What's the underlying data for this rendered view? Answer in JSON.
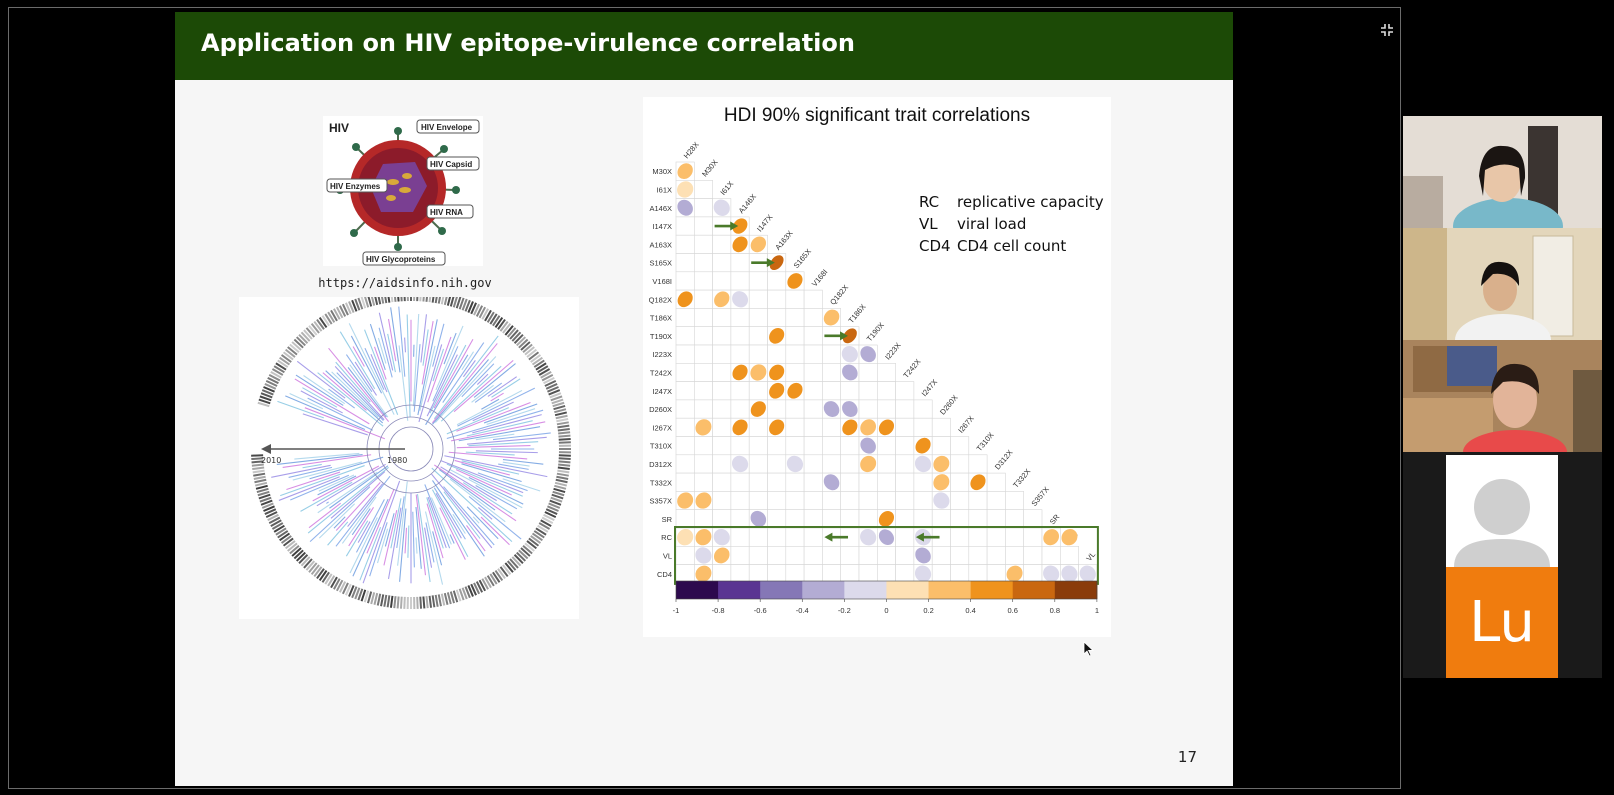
{
  "slide": {
    "title": "Application on HIV epitope-virulence correlation",
    "page_number": "17",
    "virion": {
      "heading": "HIV",
      "labels": [
        "HIV Envelope",
        "HIV Capsid",
        "HIV Enzymes",
        "HIV RNA",
        "HIV Glycoproteins"
      ],
      "caption": "https://aidsinfo.nih.gov"
    },
    "tree": {
      "axis_start": "2010",
      "axis_end": "1980"
    },
    "legend": [
      {
        "abbr": "RC",
        "text": "replicative capacity"
      },
      {
        "abbr": "VL",
        "text": "viral load"
      },
      {
        "abbr": "CD4",
        "text": "CD4 cell count"
      }
    ]
  },
  "participants": {
    "lu_initials": "Lu"
  },
  "colors": {
    "header_green": "#1c4a06",
    "highlight_green": "#4a7a2a",
    "lu_orange": "#f07c0e"
  },
  "chart_data": {
    "type": "heatmap",
    "title": "HDI 90% significant trait correlations",
    "traits": [
      "H28X",
      "M30X",
      "I61X",
      "A146X",
      "I147X",
      "A163X",
      "S165X",
      "V168I",
      "Q182X",
      "T186X",
      "T190X",
      "I223X",
      "T242X",
      "I247X",
      "D260X",
      "I267X",
      "T310X",
      "D312X",
      "T332X",
      "S357X",
      "SR",
      "RC",
      "VL",
      "CD4"
    ],
    "row_labels": [
      "M30X",
      "I61X",
      "A146X",
      "I147X",
      "A163X",
      "S165X",
      "V168I",
      "Q182X",
      "T186X",
      "T190X",
      "I223X",
      "T242X",
      "I247X",
      "D260X",
      "I267X",
      "T310X",
      "D312X",
      "T332X",
      "S357X",
      "SR",
      "RC",
      "VL",
      "CD4"
    ],
    "col_labels": [
      "H28X",
      "M30X",
      "I61X",
      "A146X",
      "I147X",
      "A163X",
      "S165X",
      "V168I",
      "Q182X",
      "T186X",
      "T190X",
      "I223X",
      "T242X",
      "I247X",
      "D260X",
      "I267X",
      "T310X",
      "D312X",
      "T332X",
      "S357X",
      "SR",
      "RC",
      "VL"
    ],
    "cells": [
      {
        "row": "M30X",
        "col": "H28X",
        "value": 0.35
      },
      {
        "row": "I61X",
        "col": "H28X",
        "value": 0.15
      },
      {
        "row": "A146X",
        "col": "H28X",
        "value": -0.3
      },
      {
        "row": "A146X",
        "col": "I61X",
        "value": -0.15
      },
      {
        "row": "I147X",
        "col": "A146X",
        "value": 0.5
      },
      {
        "row": "A163X",
        "col": "A146X",
        "value": 0.4
      },
      {
        "row": "A163X",
        "col": "I147X",
        "value": 0.35
      },
      {
        "row": "S165X",
        "col": "A163X",
        "value": 0.75
      },
      {
        "row": "V168I",
        "col": "S165X",
        "value": 0.4
      },
      {
        "row": "Q182X",
        "col": "H28X",
        "value": 0.4
      },
      {
        "row": "Q182X",
        "col": "I61X",
        "value": 0.35
      },
      {
        "row": "Q182X",
        "col": "A146X",
        "value": -0.2
      },
      {
        "row": "T186X",
        "col": "Q182X",
        "value": 0.3
      },
      {
        "row": "T190X",
        "col": "A163X",
        "value": 0.4
      },
      {
        "row": "T190X",
        "col": "T186X",
        "value": 0.7
      },
      {
        "row": "I223X",
        "col": "T186X",
        "value": -0.15
      },
      {
        "row": "I223X",
        "col": "T190X",
        "value": -0.3
      },
      {
        "row": "T242X",
        "col": "A146X",
        "value": 0.4
      },
      {
        "row": "T242X",
        "col": "I147X",
        "value": 0.2
      },
      {
        "row": "T242X",
        "col": "A163X",
        "value": 0.4
      },
      {
        "row": "T242X",
        "col": "T186X",
        "value": -0.3
      },
      {
        "row": "I247X",
        "col": "A163X",
        "value": 0.4
      },
      {
        "row": "I247X",
        "col": "S165X",
        "value": 0.4
      },
      {
        "row": "D260X",
        "col": "I147X",
        "value": 0.4
      },
      {
        "row": "D260X",
        "col": "Q182X",
        "value": -0.3
      },
      {
        "row": "D260X",
        "col": "T186X",
        "value": -0.3
      },
      {
        "row": "I267X",
        "col": "M30X",
        "value": 0.2
      },
      {
        "row": "I267X",
        "col": "A146X",
        "value": 0.4
      },
      {
        "row": "I267X",
        "col": "A163X",
        "value": 0.4
      },
      {
        "row": "I267X",
        "col": "T186X",
        "value": 0.4
      },
      {
        "row": "I267X",
        "col": "T190X",
        "value": 0.25
      },
      {
        "row": "I267X",
        "col": "I223X",
        "value": 0.4
      },
      {
        "row": "T310X",
        "col": "T190X",
        "value": -0.3
      },
      {
        "row": "T310X",
        "col": "I247X",
        "value": 0.4
      },
      {
        "row": "D312X",
        "col": "A146X",
        "value": -0.15
      },
      {
        "row": "D312X",
        "col": "S165X",
        "value": -0.15
      },
      {
        "row": "D312X",
        "col": "T190X",
        "value": 0.2
      },
      {
        "row": "D312X",
        "col": "I247X",
        "value": -0.15
      },
      {
        "row": "D312X",
        "col": "D260X",
        "value": 0.2
      },
      {
        "row": "T332X",
        "col": "Q182X",
        "value": -0.3
      },
      {
        "row": "T332X",
        "col": "D260X",
        "value": 0.2
      },
      {
        "row": "T332X",
        "col": "T310X",
        "value": 0.4
      },
      {
        "row": "S357X",
        "col": "H28X",
        "value": 0.2
      },
      {
        "row": "S357X",
        "col": "M30X",
        "value": 0.2
      },
      {
        "row": "S357X",
        "col": "D260X",
        "value": -0.15
      },
      {
        "row": "SR",
        "col": "I147X",
        "value": -0.3
      },
      {
        "row": "SR",
        "col": "I223X",
        "value": 0.4
      },
      {
        "row": "RC",
        "col": "H28X",
        "value": 0.15
      },
      {
        "row": "RC",
        "col": "M30X",
        "value": 0.2
      },
      {
        "row": "RC",
        "col": "I61X",
        "value": -0.15
      },
      {
        "row": "RC",
        "col": "T190X",
        "value": -0.15
      },
      {
        "row": "RC",
        "col": "I223X",
        "value": -0.4
      },
      {
        "row": "RC",
        "col": "I247X",
        "value": -0.15
      },
      {
        "row": "RC",
        "col": "SR",
        "value": 0.25
      },
      {
        "row": "RC",
        "col": "RC",
        "value": 0.2
      },
      {
        "row": "VL",
        "col": "M30X",
        "value": -0.15
      },
      {
        "row": "VL",
        "col": "I61X",
        "value": 0.3
      },
      {
        "row": "VL",
        "col": "I247X",
        "value": -0.3
      },
      {
        "row": "CD4",
        "col": "M30X",
        "value": 0.2
      },
      {
        "row": "CD4",
        "col": "I247X",
        "value": -0.15
      },
      {
        "row": "CD4",
        "col": "T332X",
        "value": 0.2
      },
      {
        "row": "CD4",
        "col": "SR",
        "value": -0.15
      },
      {
        "row": "CD4",
        "col": "RC",
        "value": -0.15
      },
      {
        "row": "CD4",
        "col": "VL",
        "value": -0.15
      }
    ],
    "arrows": [
      {
        "row": "I147X",
        "col": "I61X",
        "direction": "right"
      },
      {
        "row": "S165X",
        "col": "I147X",
        "direction": "right"
      },
      {
        "row": "T190X",
        "col": "Q182X",
        "direction": "right"
      },
      {
        "row": "RC",
        "col": "Q182X",
        "direction": "left"
      },
      {
        "row": "RC",
        "col": "I247X",
        "direction": "left"
      }
    ],
    "highlight_rows": [
      "RC",
      "VL",
      "CD4"
    ],
    "colorbar": {
      "range": [
        -1,
        1
      ],
      "ticks": [
        "-1",
        "-0.8",
        "-0.6",
        "-0.4",
        "-0.2",
        "0",
        "0.2",
        "0.4",
        "0.6",
        "0.8",
        "1"
      ],
      "colors": [
        "#2d0a4e",
        "#5a3592",
        "#8577b6",
        "#b3acd4",
        "#dcdaeb",
        "#fde0b4",
        "#fbbe6a",
        "#ef931d",
        "#c96710",
        "#8a3c0b"
      ]
    }
  }
}
